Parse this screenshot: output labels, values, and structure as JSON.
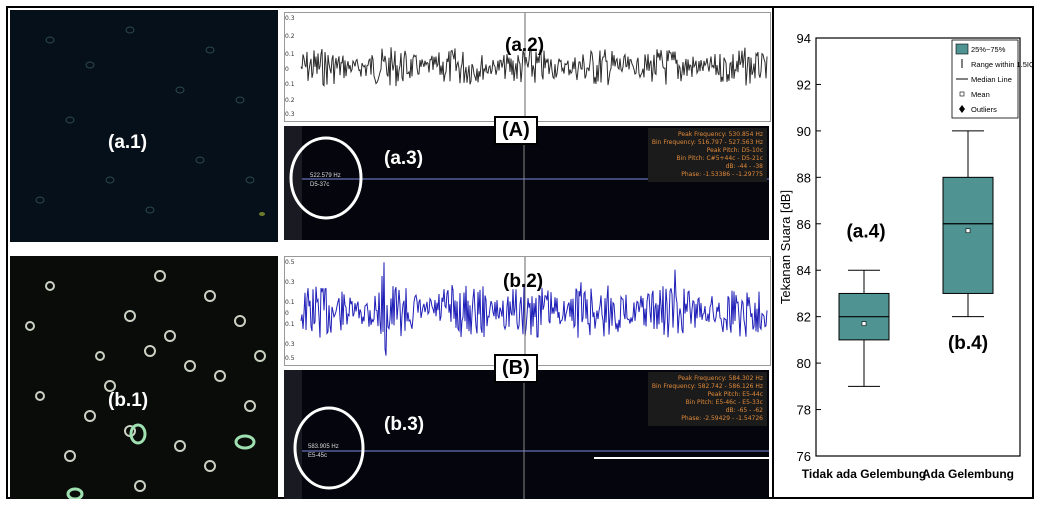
{
  "panels": {
    "a1": "(a.1)",
    "a2": "(a.2)",
    "a3": "(a.3)",
    "A": "(A)",
    "b1": "(b.1)",
    "b2": "(b.2)",
    "b3": "(b.3)",
    "B": "(B)"
  },
  "spectrogram_a": {
    "freq_readout": "522.579 Hz",
    "pitch_readout": "D5-37c",
    "info_lines": [
      "Peak Frequency: 530.854 Hz",
      "Bin Frequency: 516.797 - 527.563 Hz",
      "Peak Pitch: D5-10c",
      "Bin Pitch: C#5+44c - D5-21c",
      "dB: -44 - -38",
      "Phase: -1.53386 - -1.29775"
    ]
  },
  "spectrogram_b": {
    "freq_readout": "583.905 Hz",
    "pitch_readout": "E5-45c",
    "info_lines": [
      "Peak Frequency: 584.302 Hz",
      "Bin Frequency: 582.742 - 586.126 Hz",
      "Peak Pitch: E5-44c",
      "Bin Pitch: E5-46c - E5-33c",
      "dB: -65 - -62",
      "Phase: -2.59429 - -1.54726"
    ]
  },
  "colors": {
    "box_fill": "#4f9393",
    "wave_a": "#2b2b2b",
    "wave_b": "#1f1fb8"
  },
  "chart_data": {
    "type": "box",
    "categories": [
      "Tidak ada Gelembung",
      "Ada Gelembung"
    ],
    "ylabel": "Tekanan Suara [dB]",
    "ylim": [
      76,
      94
    ],
    "yticks": [
      76,
      78,
      80,
      82,
      84,
      86,
      88,
      90,
      92,
      94
    ],
    "boxes": [
      {
        "q1": 81,
        "median": 82,
        "q3": 83,
        "mean": 81.7,
        "whisker_low": 79,
        "whisker_high": 84
      },
      {
        "q1": 83,
        "median": 86,
        "q3": 88,
        "mean": 85.7,
        "whisker_low": 82,
        "whisker_high": 90
      }
    ],
    "annotations": [
      "(a.4)",
      "(b.4)"
    ],
    "legend": {
      "placement": "top-right",
      "entries": [
        "25%~75%",
        "Range within 1.5IQR",
        "Median Line",
        "Mean",
        "Outliers"
      ]
    }
  }
}
